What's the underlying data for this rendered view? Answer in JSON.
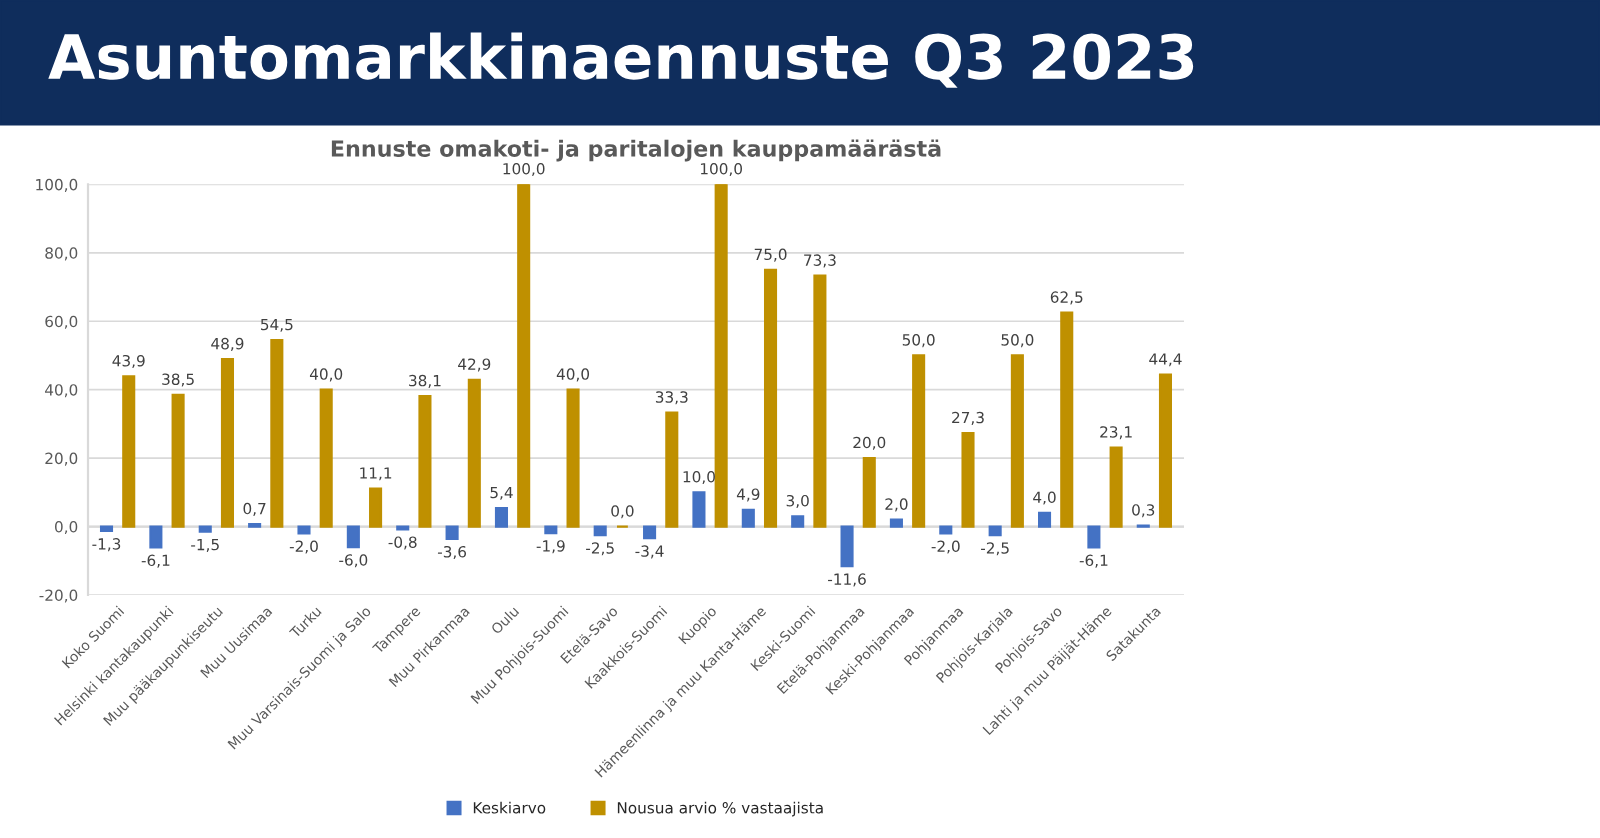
{
  "chart_data": {
    "type": "bar",
    "title": "Asuntomarkkinaennuste Q3 2023",
    "subtitle": "Ennuste omakoti- ja paritalojen kauppamäärästä",
    "categories": [
      "Koko Suomi",
      "Helsinki kantakaupunki",
      "Muu pääkaupunkiseutu",
      "Muu Uusimaa",
      "Turku",
      "Muu Varsinais-Suomi ja Salo",
      "Tampere",
      "Muu Pirkanmaa",
      "Oulu",
      "Muu Pohjois-Suomi",
      "Etelä-Savo",
      "Kaakkois-Suomi",
      "Kuopio",
      "Hämeenlinna ja muu Kanta-Häme",
      "Keski-Suomi",
      "Etelä-Pohjanmaa",
      "Keski-Pohjanmaa",
      "Pohjanmaa",
      "Pohjois-Karjala",
      "Pohjois-Savo",
      "Lahti ja muu Päijät-Häme",
      "Satakunta"
    ],
    "series": [
      {
        "name": "Keskiarvo",
        "color": "#4472c4",
        "values": [
          -1.3,
          -6.1,
          -1.5,
          0.7,
          -2.0,
          -6.0,
          -0.8,
          -3.6,
          5.4,
          -1.9,
          -2.5,
          -3.4,
          10.0,
          4.9,
          3.0,
          -11.6,
          2.0,
          -2.0,
          -2.5,
          4.0,
          -6.1,
          0.3
        ],
        "value_labels": [
          "-1,3",
          "-6,1",
          "-1,5",
          "0,7",
          "-2,0",
          "-6,0",
          "-0,8",
          "-3,6",
          "5,4",
          "-1,9",
          "-2,5",
          "-3,4",
          "10,0",
          "4,9",
          "3,0",
          "-11,6",
          "2,0",
          "-2,0",
          "-2,5",
          "4,0",
          "-6,1",
          "0,3"
        ]
      },
      {
        "name": "Nousua arvio % vastaajista",
        "color": "#bf9000",
        "values": [
          43.9,
          38.5,
          48.9,
          54.5,
          40.0,
          11.1,
          38.1,
          42.9,
          100.0,
          40.0,
          0.0,
          33.3,
          100.0,
          75.0,
          73.3,
          20.0,
          50.0,
          27.3,
          50.0,
          62.5,
          23.1,
          44.4
        ],
        "value_labels": [
          "43,9",
          "38,5",
          "48,9",
          "54,5",
          "40,0",
          "11,1",
          "38,1",
          "42,9",
          "100,0",
          "40,0",
          "0,0",
          "33,3",
          "100,0",
          "75,0",
          "73,3",
          "20,0",
          "50,0",
          "27,3",
          "50,0",
          "62,5",
          "23,1",
          "44,4"
        ]
      }
    ],
    "ylim": [
      -20,
      100
    ],
    "yticks": [
      {
        "value": -20,
        "label": "-20,0"
      },
      {
        "value": 0,
        "label": "0,0"
      },
      {
        "value": 20,
        "label": "20,0"
      },
      {
        "value": 40,
        "label": "40,0"
      },
      {
        "value": 60,
        "label": "60,0"
      },
      {
        "value": 80,
        "label": "80,0"
      },
      {
        "value": 100,
        "label": "100,0"
      }
    ],
    "grid": "y",
    "legend": "bottom"
  }
}
